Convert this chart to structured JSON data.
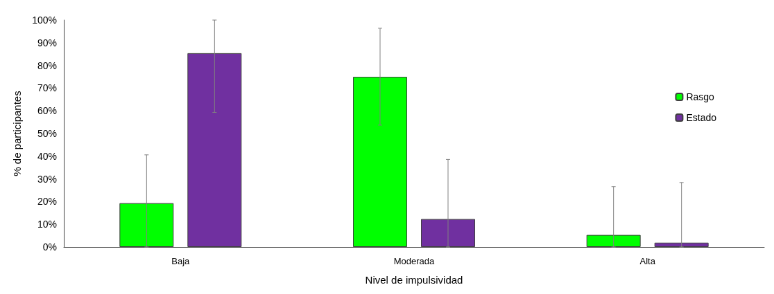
{
  "chart_data": {
    "type": "bar",
    "xlabel": "Nivel de impulsividad",
    "ylabel": "% de participantes",
    "categories": [
      "Baja",
      "Moderada",
      "Alta"
    ],
    "series": [
      {
        "name": "Rasgo",
        "color": "#00ff00",
        "values": [
          19.3,
          75.0,
          5.3
        ],
        "errors": [
          [
            0,
            40.6
          ],
          [
            53.7,
            96.4
          ],
          [
            0,
            26.6
          ]
        ]
      },
      {
        "name": "Estado",
        "color": "#7030a0",
        "values": [
          85.4,
          12.3,
          1.9
        ],
        "errors": [
          [
            59.3,
            100
          ],
          [
            0,
            38.6
          ],
          [
            0,
            28.4
          ]
        ]
      }
    ],
    "ylim": [
      0,
      100
    ],
    "yticks": [
      {
        "value": 0,
        "label": "0%"
      },
      {
        "value": 10,
        "label": "10%"
      },
      {
        "value": 20,
        "label": "20%"
      },
      {
        "value": 30,
        "label": "30%"
      },
      {
        "value": 40,
        "label": "40%"
      },
      {
        "value": 50,
        "label": "50%"
      },
      {
        "value": 60,
        "label": "60%"
      },
      {
        "value": 70,
        "label": "70%"
      },
      {
        "value": 80,
        "label": "80%"
      },
      {
        "value": 90,
        "label": "90%"
      },
      {
        "value": 100,
        "label": "100%"
      }
    ],
    "grid": false,
    "legend": "right"
  }
}
